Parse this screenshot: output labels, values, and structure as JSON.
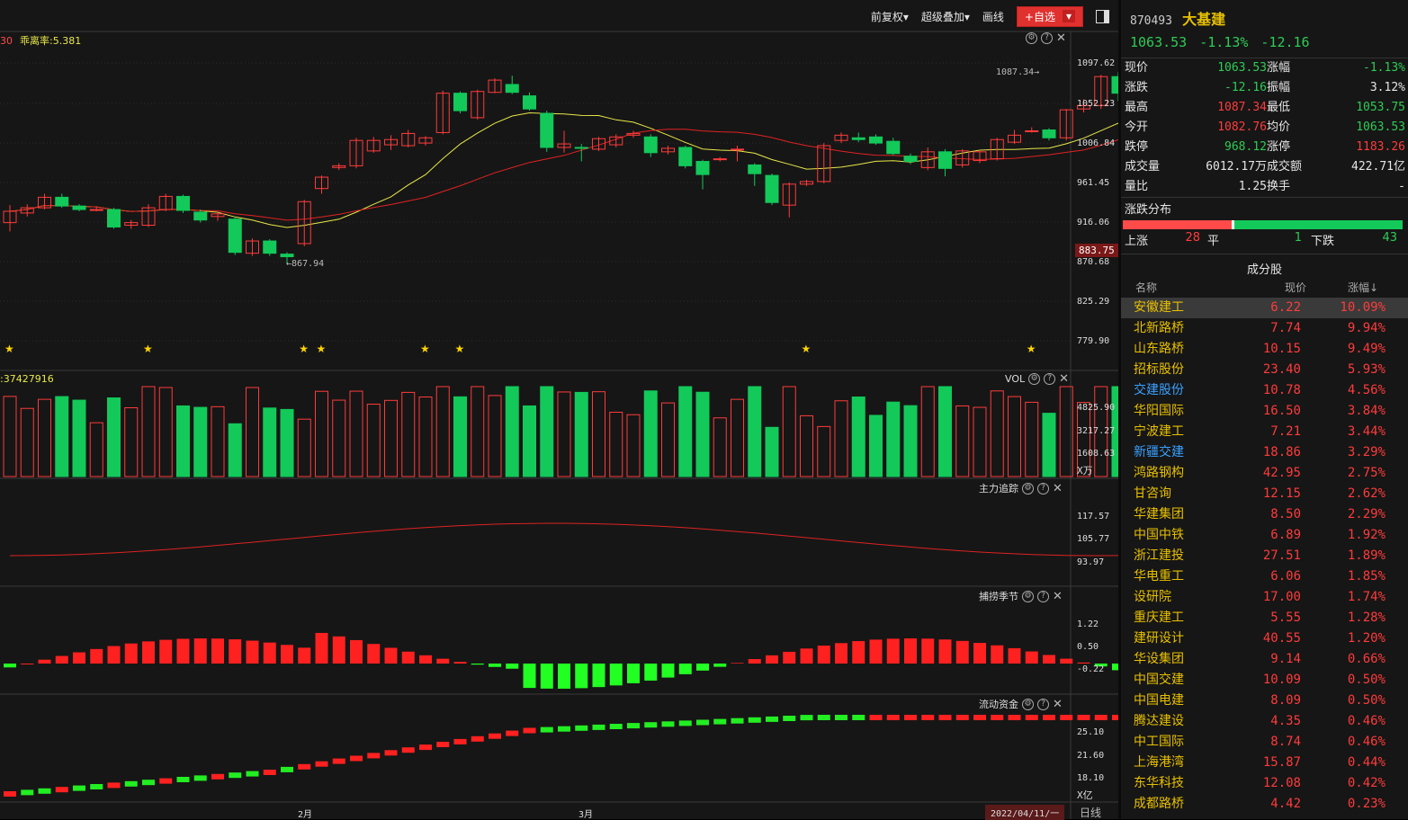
{
  "toolbar": {
    "adjust": "前复权▾",
    "overlay": "超级叠加▾",
    "draw": "画线",
    "add_fav": "+自选",
    "add_fav_drop": "▾"
  },
  "main": {
    "indicator_label": "乖离率:5.381",
    "left_edge_value": "30",
    "yaxis": [
      "1097.62",
      "1052.23",
      "1006.84",
      "961.45",
      "916.06",
      "870.68",
      "825.29",
      "779.90"
    ],
    "current_badge": "883.75",
    "high_annot": "1087.34",
    "low_annot": "867.94"
  },
  "vol": {
    "title": "VOL",
    "left_label": ":37427916",
    "yaxis": [
      "4825.90",
      "3217.27",
      "1608.63"
    ],
    "unit": "X万"
  },
  "p3": {
    "title": "主力追踪",
    "yaxis": [
      "117.57",
      "105.77",
      "93.97"
    ]
  },
  "p4": {
    "title": "捕捞季节",
    "yaxis": [
      "1.22",
      "0.50",
      "-0.22"
    ]
  },
  "p5": {
    "title": "流动资金",
    "yaxis": [
      "25.10",
      "21.60",
      "18.10"
    ],
    "unit": "X亿"
  },
  "xaxis": {
    "m2": "2月",
    "m3": "3月",
    "cursor_date": "2022/04/11/一",
    "period": "日线"
  },
  "quote": {
    "code": "870493",
    "name": "大基建",
    "price": "1063.53",
    "change_pct": "-1.13%",
    "change": "-12.16",
    "rows": [
      {
        "l1": "现价",
        "v1": "1063.53",
        "c1": "green",
        "l2": "涨幅",
        "v2": "-1.13%",
        "c2": "green"
      },
      {
        "l1": "涨跌",
        "v1": "-12.16",
        "c1": "green",
        "l2": "振幅",
        "v2": "3.12%",
        "c2": "white"
      },
      {
        "l1": "最高",
        "v1": "1087.34",
        "c1": "red",
        "l2": "最低",
        "v2": "1053.75",
        "c2": "green"
      },
      {
        "l1": "今开",
        "v1": "1082.76",
        "c1": "red",
        "l2": "均价",
        "v2": "1063.53",
        "c2": "green"
      },
      {
        "l1": "跌停",
        "v1": "968.12",
        "c1": "green",
        "l2": "涨停",
        "v2": "1183.26",
        "c2": "red"
      },
      {
        "l1": "成交量",
        "v1": "6012.17万",
        "c1": "white",
        "l2": "成交额",
        "v2": "422.71亿",
        "c2": "white"
      },
      {
        "l1": "量比",
        "v1": "1.25",
        "c1": "white",
        "l2": "换手",
        "v2": "-",
        "c2": "white"
      }
    ],
    "dist_title": "涨跌分布",
    "up_label": "上涨",
    "up": "28",
    "flat_label": "平",
    "flat": "1",
    "down_label": "下跌",
    "down": "43",
    "up_count": 28,
    "flat_count": 1,
    "down_count": 43
  },
  "constituents": {
    "title": "成分股",
    "headers": {
      "name": "名称",
      "price": "现价",
      "change": "涨幅↓"
    },
    "rows": [
      {
        "name": "安徽建工",
        "price": "6.22",
        "pct": "10.09%",
        "c": "yellow"
      },
      {
        "name": "北新路桥",
        "price": "7.74",
        "pct": "9.94%",
        "c": "yellow"
      },
      {
        "name": "山东路桥",
        "price": "10.15",
        "pct": "9.49%",
        "c": "yellow"
      },
      {
        "name": "招标股份",
        "price": "23.40",
        "pct": "5.93%",
        "c": "yellow"
      },
      {
        "name": "交建股份",
        "price": "10.78",
        "pct": "4.56%",
        "c": "blue"
      },
      {
        "name": "华阳国际",
        "price": "16.50",
        "pct": "3.84%",
        "c": "yellow"
      },
      {
        "name": "宁波建工",
        "price": "7.21",
        "pct": "3.44%",
        "c": "yellow"
      },
      {
        "name": "新疆交建",
        "price": "18.86",
        "pct": "3.29%",
        "c": "blue"
      },
      {
        "name": "鸿路钢构",
        "price": "42.95",
        "pct": "2.75%",
        "c": "yellow"
      },
      {
        "name": "甘咨询",
        "price": "12.15",
        "pct": "2.62%",
        "c": "yellow"
      },
      {
        "name": "华建集团",
        "price": "8.50",
        "pct": "2.29%",
        "c": "yellow"
      },
      {
        "name": "中国中铁",
        "price": "6.89",
        "pct": "1.92%",
        "c": "yellow"
      },
      {
        "name": "浙江建投",
        "price": "27.51",
        "pct": "1.89%",
        "c": "yellow"
      },
      {
        "name": "华电重工",
        "price": "6.06",
        "pct": "1.85%",
        "c": "yellow"
      },
      {
        "name": "设研院",
        "price": "17.00",
        "pct": "1.74%",
        "c": "yellow"
      },
      {
        "name": "重庆建工",
        "price": "5.55",
        "pct": "1.28%",
        "c": "yellow"
      },
      {
        "name": "建研设计",
        "price": "40.55",
        "pct": "1.20%",
        "c": "yellow"
      },
      {
        "name": "华设集团",
        "price": "9.14",
        "pct": "0.66%",
        "c": "yellow"
      },
      {
        "name": "中国交建",
        "price": "10.09",
        "pct": "0.50%",
        "c": "yellow"
      },
      {
        "name": "中国电建",
        "price": "8.09",
        "pct": "0.50%",
        "c": "yellow"
      },
      {
        "name": "腾达建设",
        "price": "4.35",
        "pct": "0.46%",
        "c": "yellow"
      },
      {
        "name": "中工国际",
        "price": "8.74",
        "pct": "0.46%",
        "c": "yellow"
      },
      {
        "name": "上海港湾",
        "price": "15.87",
        "pct": "0.44%",
        "c": "yellow"
      },
      {
        "name": "东华科技",
        "price": "12.08",
        "pct": "0.42%",
        "c": "yellow"
      },
      {
        "name": "成都路桥",
        "price": "4.42",
        "pct": "0.23%",
        "c": "yellow"
      }
    ]
  },
  "colors": {
    "up": "#ff3b3b",
    "down": "#13c95a",
    "ma_yellow": "#e8e84a",
    "ma_red": "#e02222",
    "band_green": "#22c322",
    "star": "#ffd400",
    "bg": "#161616",
    "grid": "#2c2c2c"
  },
  "chart_data": {
    "type": "candlestick",
    "yaxis_range": [
      779.9,
      1097.62
    ],
    "candles": [
      [
        915,
        928,
        905,
        935,
        "u"
      ],
      [
        926,
        932,
        922,
        936,
        "u"
      ],
      [
        932,
        944,
        930,
        948,
        "u"
      ],
      [
        944,
        934,
        932,
        948,
        "d"
      ],
      [
        934,
        930,
        928,
        936,
        "d"
      ],
      [
        930,
        930,
        928,
        933,
        "u"
      ],
      [
        930,
        910,
        908,
        932,
        "d"
      ],
      [
        912,
        915,
        908,
        918,
        "u"
      ],
      [
        912,
        932,
        910,
        936,
        "u"
      ],
      [
        930,
        945,
        928,
        948,
        "u"
      ],
      [
        945,
        929,
        926,
        947,
        "d"
      ],
      [
        927,
        918,
        915,
        930,
        "d"
      ],
      [
        922,
        925,
        917,
        928,
        "u"
      ],
      [
        919,
        881,
        878,
        922,
        "d"
      ],
      [
        880,
        894,
        877,
        897,
        "u"
      ],
      [
        894,
        880,
        877,
        896,
        "d"
      ],
      [
        879,
        876,
        868,
        881,
        "d"
      ],
      [
        891,
        939,
        888,
        941,
        "u"
      ],
      [
        954,
        967,
        948,
        969,
        "u"
      ],
      [
        978,
        980,
        975,
        983,
        "u"
      ],
      [
        980,
        1009,
        977,
        1012,
        "u"
      ],
      [
        997,
        1009,
        995,
        1013,
        "u"
      ],
      [
        1004,
        1010,
        998,
        1015,
        "u"
      ],
      [
        1003,
        1017,
        1001,
        1021,
        "u"
      ],
      [
        1006,
        1012,
        1003,
        1014,
        "u"
      ],
      [
        1018,
        1063,
        1016,
        1066,
        "u"
      ],
      [
        1063,
        1043,
        1040,
        1065,
        "d"
      ],
      [
        1035,
        1065,
        1033,
        1067,
        "u"
      ],
      [
        1064,
        1078,
        1063,
        1080,
        "u"
      ],
      [
        1073,
        1064,
        1062,
        1083,
        "d"
      ],
      [
        1060,
        1045,
        1043,
        1064,
        "d"
      ],
      [
        1040,
        1001,
        996,
        1043,
        "d"
      ],
      [
        1001,
        1005,
        995,
        1020,
        "u"
      ],
      [
        1001,
        1000,
        985,
        1005,
        "d"
      ],
      [
        999,
        1011,
        997,
        1013,
        "u"
      ],
      [
        1004,
        1013,
        1001,
        1016,
        "u"
      ],
      [
        1015,
        1017,
        1012,
        1020,
        "u"
      ],
      [
        1013,
        995,
        990,
        1016,
        "d"
      ],
      [
        996,
        1000,
        993,
        1003,
        "u"
      ],
      [
        1001,
        980,
        977,
        1003,
        "d"
      ],
      [
        985,
        970,
        953,
        987,
        "d"
      ],
      [
        987,
        988,
        985,
        990,
        "u"
      ],
      [
        998,
        999,
        985,
        1003,
        "u"
      ],
      [
        981,
        971,
        957,
        983,
        "d"
      ],
      [
        969,
        938,
        935,
        971,
        "d"
      ],
      [
        935,
        959,
        921,
        961,
        "u"
      ],
      [
        959,
        962,
        957,
        964,
        "u"
      ],
      [
        962,
        1003,
        960,
        1006,
        "u"
      ],
      [
        1009,
        1015,
        1006,
        1018,
        "u"
      ],
      [
        1012,
        1010,
        1007,
        1018,
        "d"
      ],
      [
        1013,
        1006,
        1004,
        1016,
        "d"
      ],
      [
        1008,
        994,
        992,
        1012,
        "d"
      ],
      [
        991,
        985,
        982,
        994,
        "d"
      ],
      [
        978,
        996,
        975,
        1001,
        "u"
      ],
      [
        996,
        977,
        968,
        999,
        "d"
      ],
      [
        981,
        997,
        978,
        999,
        "u"
      ],
      [
        986,
        996,
        983,
        998,
        "u"
      ],
      [
        988,
        1010,
        986,
        1012,
        "u"
      ],
      [
        1007,
        1015,
        1005,
        1021,
        "u"
      ],
      [
        1019,
        1020,
        1018,
        1024,
        "u"
      ],
      [
        1021,
        1012,
        1009,
        1023,
        "d"
      ],
      [
        1012,
        1044,
        1009,
        1045,
        "u"
      ],
      [
        1045,
        1049,
        1041,
        1056,
        "u"
      ],
      [
        1049,
        1082,
        1045,
        1084,
        "u"
      ],
      [
        1082,
        1063,
        1054,
        1087,
        "d"
      ]
    ]
  }
}
